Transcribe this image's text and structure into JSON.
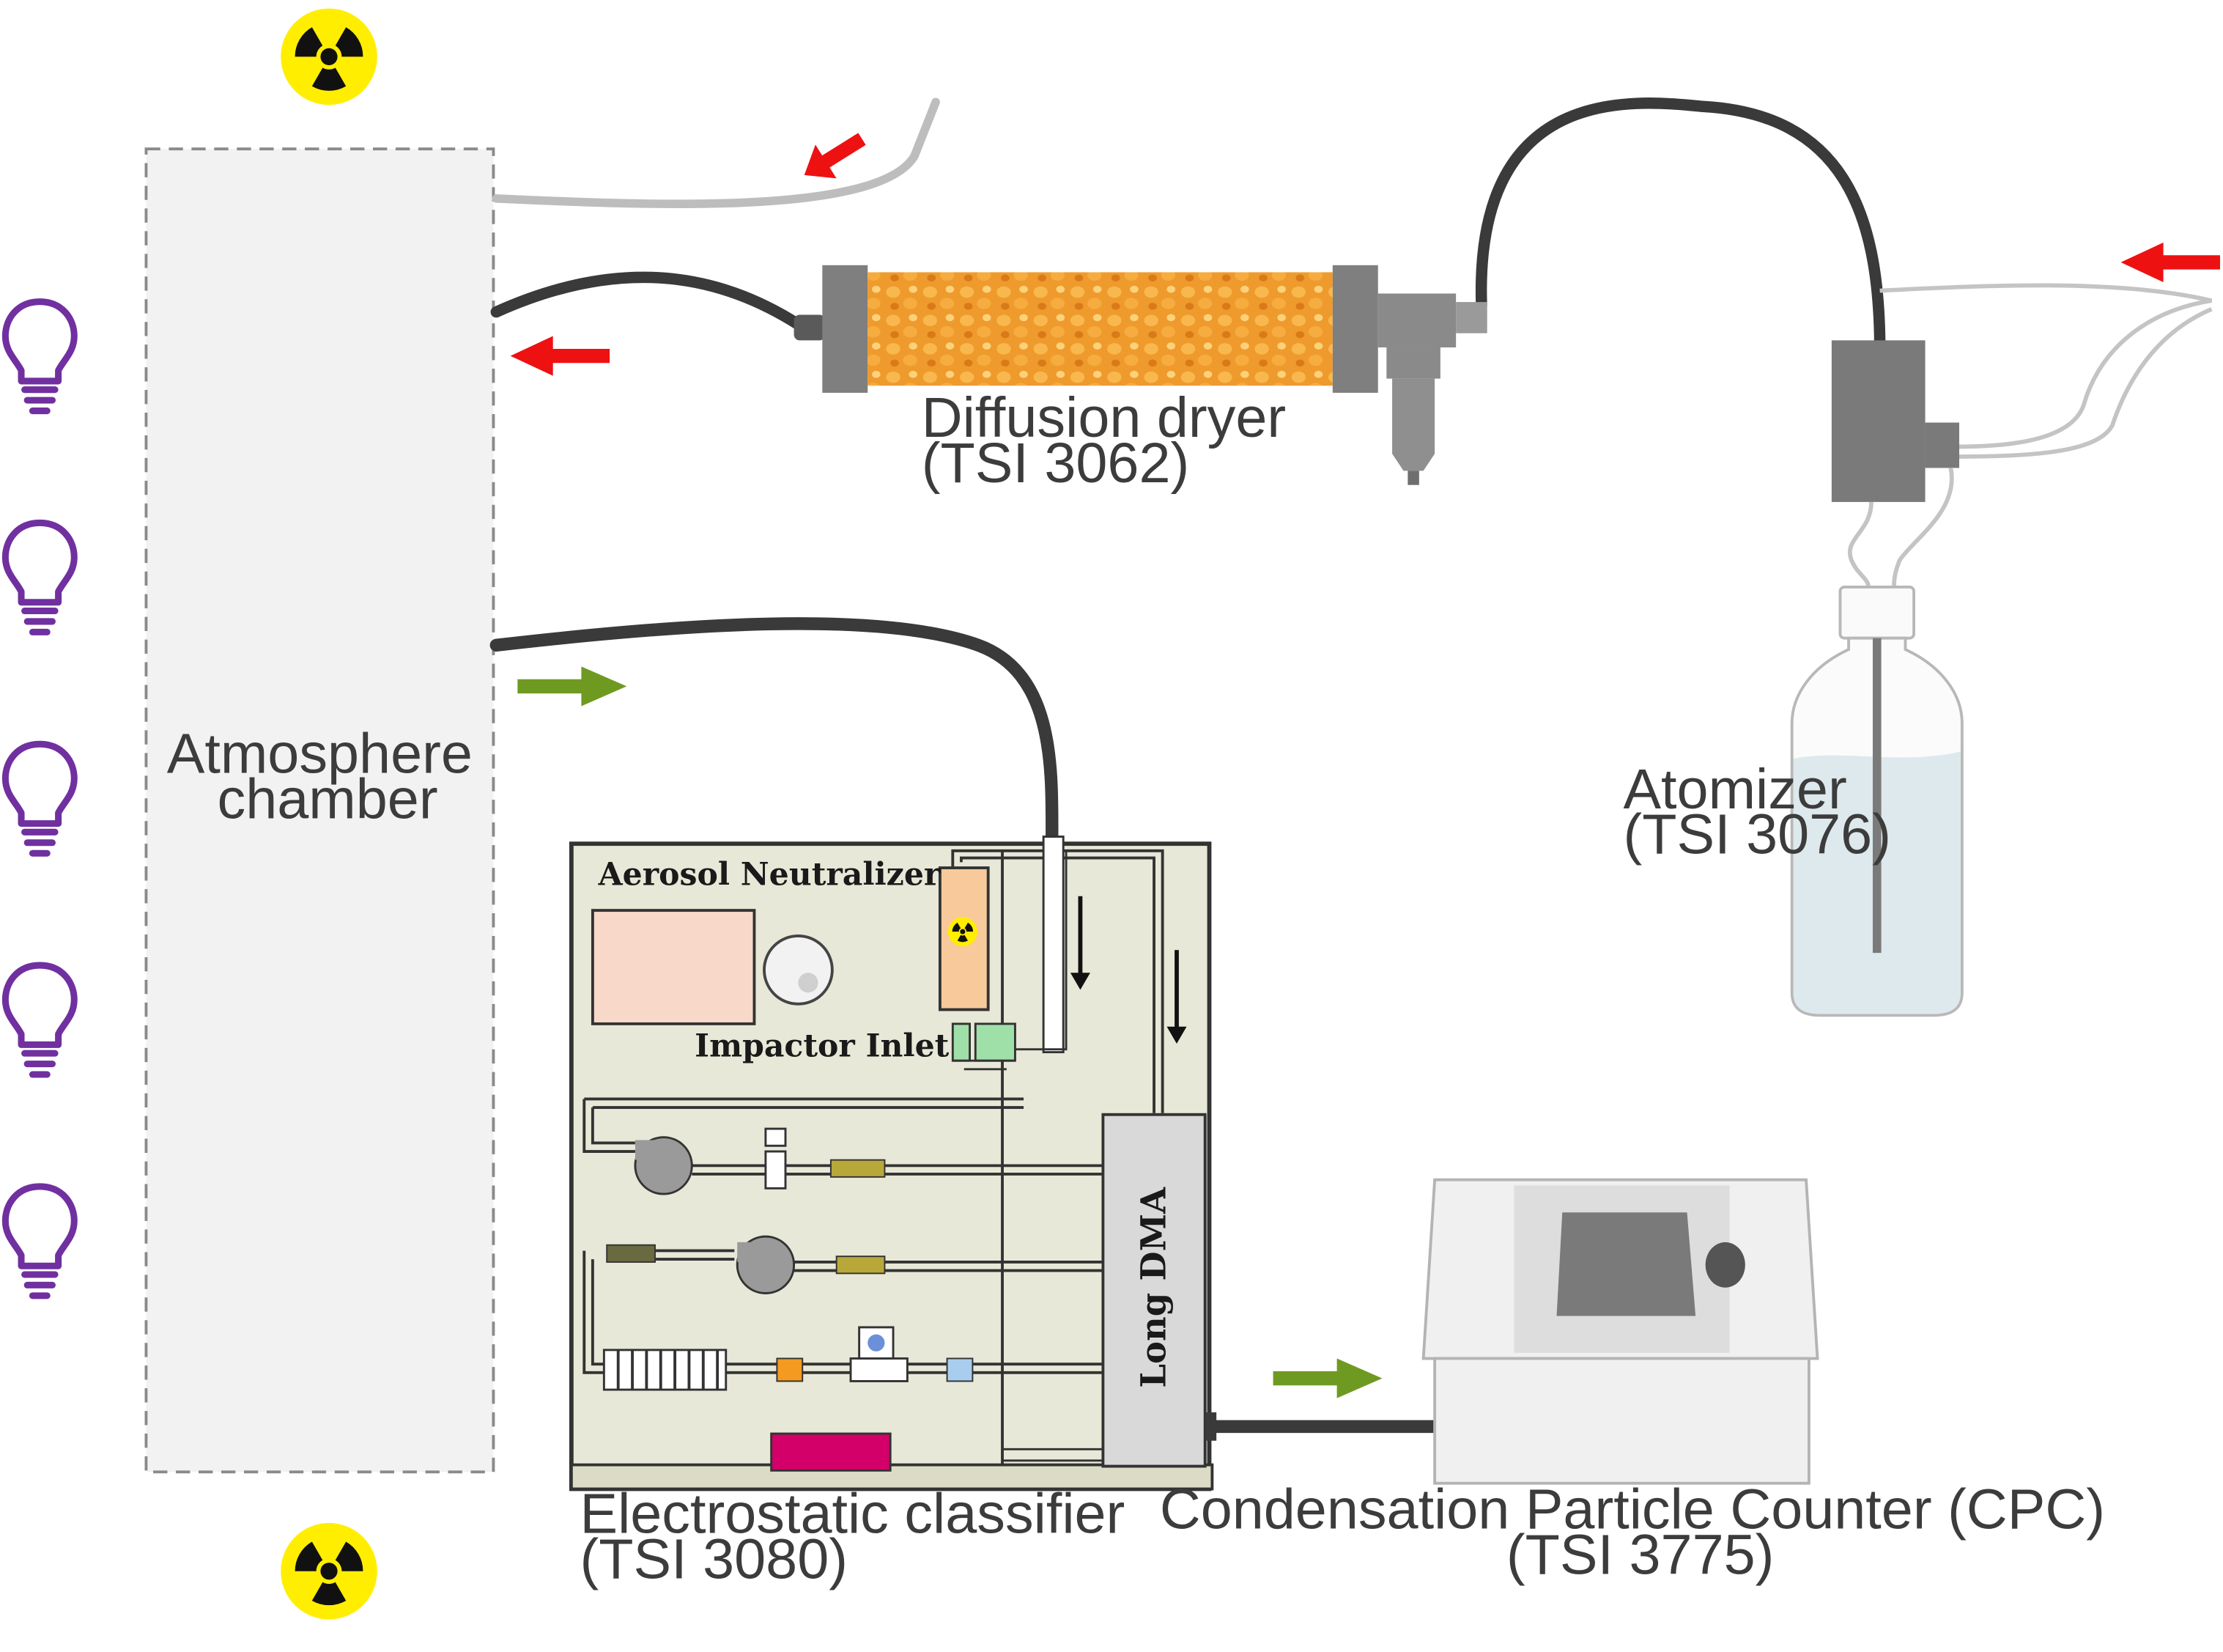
{
  "labels": {
    "atmosphere_chamber": [
      "Atmosphere",
      "chamber"
    ],
    "diffusion_dryer": [
      "Diffusion dryer",
      "(TSI 3062)"
    ],
    "atomizer": [
      "Atomizer",
      "(TSI 3076)"
    ],
    "electrostatic_classifier": [
      "Electrostatic classifier",
      "(TSI 3080)"
    ],
    "cpc": [
      "Condensation Particle Counter (CPC)",
      "(TSI 3775)"
    ]
  },
  "panel_text": {
    "aerosol_neutralizer": "Aerosol Neutralizer",
    "impactor_inlet": "Impactor Inlet",
    "long_dma": "Long DMA"
  },
  "icons": {
    "radiation": "radiation-icon",
    "lightbulb": "lightbulb-icon",
    "inflow_arrow": "red-arrow-icon",
    "outflow_arrow": "green-arrow-icon"
  },
  "colors": {
    "inflow_arrow": "#ee1111",
    "outflow_arrow": "#6f9a22",
    "lightbulb": "#7030a0",
    "radiation_bg": "#ffee00",
    "tube": "#3a3a3a",
    "clean_air_tube": "#bdbdbd"
  }
}
